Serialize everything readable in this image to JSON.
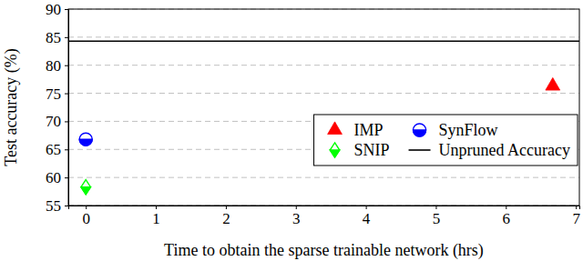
{
  "chart_data": {
    "type": "scatter",
    "x_label": "Time to obtain the sparse trainable network (hrs)",
    "y_label": "Test accuracy (%)",
    "xlim": [
      -0.25,
      7.05
    ],
    "ylim": [
      55,
      90
    ],
    "xticks": [
      0,
      1,
      2,
      3,
      4,
      5,
      6,
      7
    ],
    "yticks": [
      55,
      60,
      65,
      70,
      75,
      80,
      85,
      90
    ],
    "grid": true,
    "legend": "lower right",
    "series": [
      {
        "name": "IMP",
        "type": "scatter",
        "color": "#ff0000",
        "marker": "triangle",
        "x": [
          6.67
        ],
        "values": [
          76.3
        ]
      },
      {
        "name": "SynFlow",
        "type": "scatter",
        "color": "#0000ff",
        "marker": "half-circle",
        "x": [
          0
        ],
        "values": [
          66.8
        ]
      },
      {
        "name": "SNIP",
        "type": "scatter",
        "color": "#00ff00",
        "marker": "half-diamond",
        "x": [
          0
        ],
        "values": [
          58.3
        ]
      },
      {
        "name": "Unpruned Accuracy",
        "type": "line",
        "color": "#000000",
        "line_style": "solid",
        "x": [
          -0.25,
          7.05
        ],
        "values": [
          84.3,
          84.3
        ]
      }
    ]
  }
}
